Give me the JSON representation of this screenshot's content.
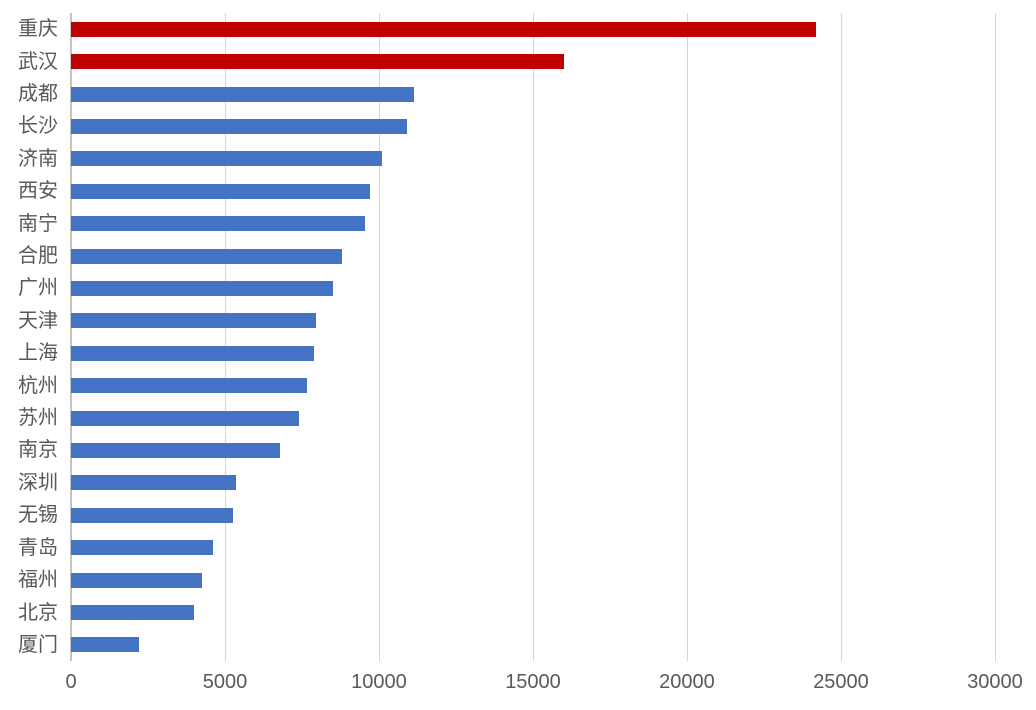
{
  "chart_data": {
    "type": "bar",
    "orientation": "horizontal",
    "title": "",
    "xlabel": "",
    "ylabel": "",
    "categories": [
      "重庆",
      "武汉",
      "成都",
      "长沙",
      "济南",
      "西安",
      "南宁",
      "合肥",
      "广州",
      "天津",
      "上海",
      "杭州",
      "苏州",
      "南京",
      "深圳",
      "无锡",
      "青岛",
      "福州",
      "北京",
      "厦门"
    ],
    "values": [
      24200,
      16000,
      11150,
      10900,
      10100,
      9700,
      9550,
      8800,
      8500,
      7950,
      7900,
      7650,
      7400,
      6800,
      5350,
      5250,
      4600,
      4250,
      4000,
      2200
    ],
    "bar_colors": [
      "#c00000",
      "#c00000",
      "#4472c4",
      "#4472c4",
      "#4472c4",
      "#4472c4",
      "#4472c4",
      "#4472c4",
      "#4472c4",
      "#4472c4",
      "#4472c4",
      "#4472c4",
      "#4472c4",
      "#4472c4",
      "#4472c4",
      "#4472c4",
      "#4472c4",
      "#4472c4",
      "#4472c4",
      "#4472c4"
    ],
    "highlighted_categories": [
      "重庆",
      "武汉"
    ],
    "highlight_color": "#c00000",
    "default_color": "#4472c4",
    "xlim": [
      0,
      30000
    ],
    "x_ticks": [
      0,
      5000,
      10000,
      15000,
      20000,
      25000,
      30000
    ],
    "x_tick_labels": [
      "0",
      "5000",
      "10000",
      "15000",
      "20000",
      "25000",
      "30000"
    ],
    "grid": true,
    "gridline_color": "#d6d6d6",
    "axis_label_color": "#595959",
    "legend": "none",
    "background_color": "#ffffff"
  }
}
